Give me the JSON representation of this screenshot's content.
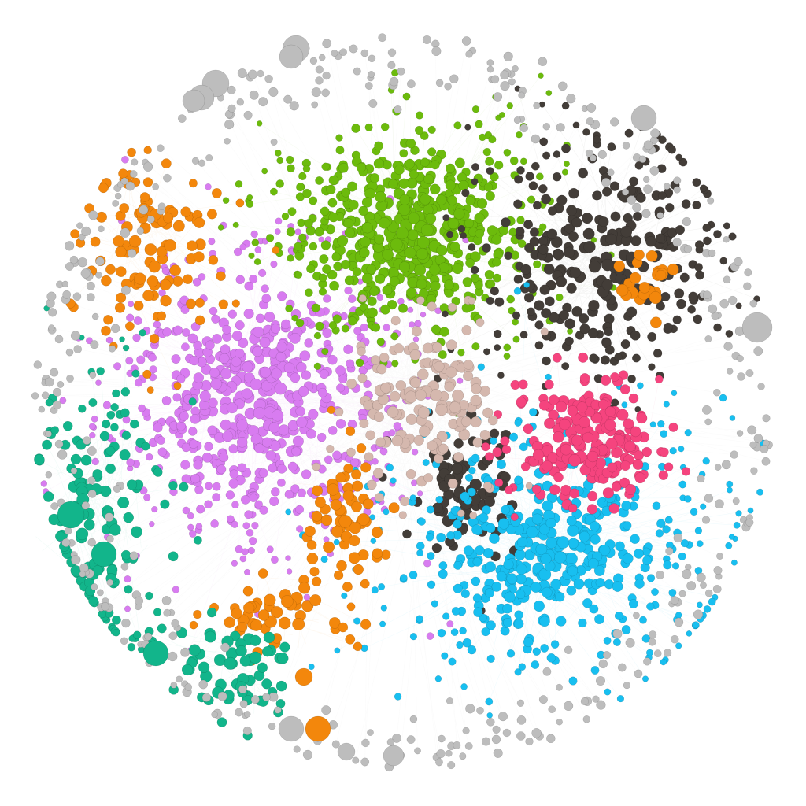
{
  "communities": [
    {
      "id": "purple",
      "color": "#d87cf0",
      "node_count": 620
    },
    {
      "id": "green",
      "color": "#6cbb0c",
      "node_count": 560
    },
    {
      "id": "dark",
      "color": "#433d38",
      "node_count": 380
    },
    {
      "id": "cyan",
      "color": "#18bff0",
      "node_count": 470
    },
    {
      "id": "pink",
      "color": "#f5447e",
      "node_count": 190
    },
    {
      "id": "orange",
      "color": "#f3870c",
      "node_count": 240
    },
    {
      "id": "teal",
      "color": "#12b58b",
      "node_count": 200
    },
    {
      "id": "tan",
      "color": "#d5b8ae",
      "node_count": 150
    },
    {
      "id": "gray",
      "color": "#bdbdbd",
      "node_count": 420
    }
  ],
  "background_color": "#ffffff",
  "edge_opacity": 0.06
}
